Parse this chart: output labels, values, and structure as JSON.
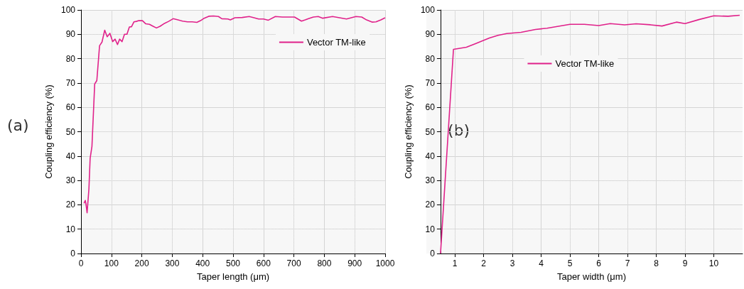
{
  "chart_data": [
    {
      "type": "line",
      "xlabel": "Taper length (μm)",
      "ylabel": "Coupling efficiency (%)",
      "annotations": [
        "(a)"
      ],
      "xlim": [
        0,
        1000
      ],
      "xticks": [
        0,
        100,
        200,
        300,
        400,
        500,
        600,
        700,
        800,
        900,
        1000
      ],
      "ylim": [
        0,
        100
      ],
      "yticks": [
        0,
        10,
        20,
        30,
        40,
        50,
        60,
        70,
        80,
        90,
        100
      ],
      "grid": true,
      "legend": "top right",
      "line_style": "solid",
      "series": [
        {
          "name": "Vector TM-like",
          "color": "#e0218a",
          "x": [
            10,
            14,
            16,
            20,
            26,
            30,
            36,
            45,
            52,
            61,
            69,
            78,
            86,
            95,
            104,
            112,
            120,
            127,
            135,
            143,
            151,
            159,
            166,
            174,
            182,
            190,
            202,
            213,
            225,
            237,
            248,
            260,
            272,
            288,
            303,
            319,
            334,
            350,
            366,
            381,
            393,
            405,
            420,
            436,
            452,
            463,
            483,
            491,
            506,
            530,
            553,
            569,
            584,
            600,
            616,
            639,
            662,
            682,
            702,
            713,
            725,
            737,
            748,
            764,
            780,
            795,
            827,
            873,
            904,
            923,
            939,
            958,
            970,
            986,
            1000
          ],
          "values": [
            20.6,
            21.8,
            20.6,
            16.7,
            26.5,
            39,
            44,
            69.6,
            71,
            85.3,
            86.8,
            91.7,
            89,
            90.4,
            87,
            88,
            85.8,
            88,
            87,
            90,
            90,
            93,
            93.1,
            95.1,
            95.3,
            95.6,
            95.6,
            94.3,
            94.1,
            93.3,
            92.6,
            93.3,
            94.3,
            95.3,
            96.4,
            95.9,
            95.4,
            95.1,
            95.1,
            94.9,
            95.6,
            96.6,
            97.4,
            97.5,
            97.3,
            96.4,
            96.3,
            95.9,
            96.8,
            96.9,
            97.3,
            96.8,
            96.3,
            96.3,
            95.8,
            97.3,
            97.1,
            97.1,
            97.1,
            96.3,
            95.4,
            95.9,
            96.4,
            97.1,
            97.3,
            96.6,
            97.3,
            96.3,
            97.3,
            97.1,
            95.9,
            95,
            95.1,
            95.9,
            96.8
          ]
        }
      ]
    },
    {
      "type": "line",
      "xlabel": "Taper width (μm)",
      "ylabel": "Coupling efficiency (%)",
      "annotations": [
        "(b)"
      ],
      "xlim": [
        0.5,
        11
      ],
      "xticks": [
        1,
        2,
        3,
        4,
        5,
        6,
        7,
        8,
        9,
        10
      ],
      "ylim": [
        0,
        100
      ],
      "yticks": [
        0,
        10,
        20,
        30,
        40,
        50,
        60,
        70,
        80,
        90,
        100
      ],
      "grid": true,
      "legend": "top",
      "line_style": "solid",
      "series": [
        {
          "name": "Vector TM-like",
          "color": "#e0218a",
          "x": [
            0.5,
            0.95,
            1.4,
            1.7,
            2.2,
            2.5,
            2.8,
            3.3,
            3.8,
            4.2,
            4.6,
            5.0,
            5.5,
            6.0,
            6.4,
            6.9,
            7.3,
            7.8,
            8.2,
            8.7,
            9.0,
            9.5,
            10.0,
            10.5,
            10.9
          ],
          "values": [
            0,
            83.8,
            84.7,
            86.1,
            88.5,
            89.6,
            90.3,
            90.8,
            92,
            92.5,
            93.3,
            94.1,
            94.1,
            93.6,
            94.4,
            93.9,
            94.3,
            93.9,
            93.4,
            95,
            94.4,
            96.1,
            97.6,
            97.4,
            97.8
          ]
        }
      ]
    }
  ]
}
